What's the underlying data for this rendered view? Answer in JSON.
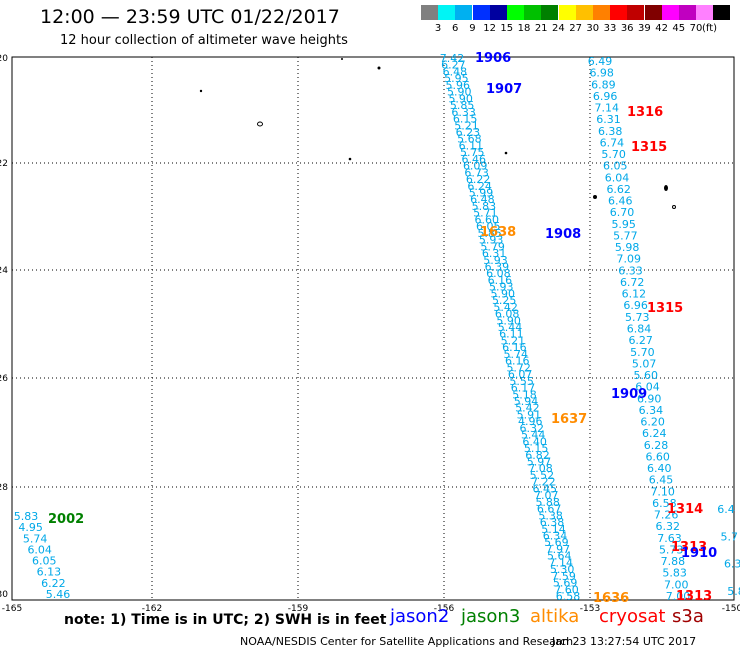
{
  "header": {
    "title": "12:00 — 23:59 UTC 01/22/2017",
    "subtitle": "12 hour collection of altimeter wave heights"
  },
  "legend": {
    "colors": [
      "#808080",
      "#00f5f5",
      "#00b0f0",
      "#0030ff",
      "#0000a0",
      "#00ff00",
      "#00c000",
      "#008000",
      "#ffff00",
      "#ffc000",
      "#ff8000",
      "#ff0000",
      "#c00000",
      "#800000",
      "#ff00ff",
      "#c000c0",
      "#ff80ff",
      "#000000"
    ],
    "labels": [
      "3",
      "6",
      "9",
      "12",
      "15",
      "18",
      "21",
      "24",
      "27",
      "30",
      "33",
      "36",
      "39",
      "42",
      "45",
      "70"
    ],
    "unit": "(ft)"
  },
  "axes": {
    "lat_labels": [
      "-20",
      "-22",
      "-24",
      "-26",
      "-28",
      "-30"
    ],
    "lon_labels": [
      "-165",
      "-162",
      "-159",
      "-156",
      "-153",
      "-150"
    ]
  },
  "passes": [
    {
      "label": "1906",
      "color": "#0000ff"
    },
    {
      "label": "1907",
      "color": "#0000ff"
    },
    {
      "label": "1316",
      "color": "#ff0000"
    },
    {
      "label": "1315",
      "color": "#ff0000"
    },
    {
      "label": "1638",
      "color": "#ff8c00"
    },
    {
      "label": "1908",
      "color": "#0000ff"
    },
    {
      "label": "1315",
      "color": "#ff0000"
    },
    {
      "label": "1909",
      "color": "#0000ff"
    },
    {
      "label": "1637",
      "color": "#ff8c00"
    },
    {
      "label": "2002",
      "color": "#008000"
    },
    {
      "label": "1314",
      "color": "#ff0000"
    },
    {
      "label": "1313",
      "color": "#ff0000"
    },
    {
      "label": "1910",
      "color": "#0000ff"
    },
    {
      "label": "1636",
      "color": "#ff8c00"
    },
    {
      "label": "1313",
      "color": "#ff0000"
    }
  ],
  "tracks": {
    "trackA": [
      "7.42",
      "6.27",
      "6.48",
      "5.95",
      "5.96",
      "5.90",
      "5.90",
      "5.85",
      "6.33",
      "6.15",
      "5.21",
      "6.23",
      "5.68",
      "6.11",
      "5.75",
      "6.46",
      "6.09",
      "6.73",
      "6.22",
      "6.24",
      "5.99",
      "6.48",
      "5.83",
      "5.71",
      "6.60",
      "6.05",
      "5.85",
      "5.93",
      "5.79",
      "6.31",
      "5.93",
      "6.39",
      "6.08",
      "6.16",
      "5.93",
      "5.90",
      "5.25",
      "5.42",
      "6.08",
      "5.90",
      "5.44",
      "6.11",
      "5.21",
      "6.16",
      "5.74",
      "6.16",
      "5.72",
      "6.07",
      "5.55",
      "6.17",
      "5.18",
      "5.94",
      "5.42",
      "5.91",
      "4.96",
      "6.32",
      "5.44",
      "6.40",
      "5.15",
      "6.82",
      "5.97",
      "7.08",
      "5.52",
      "7.22",
      "6.45",
      "7.07",
      "5.88",
      "6.67",
      "5.38",
      "6.38",
      "5.14",
      "6.34",
      "5.69",
      "7.97",
      "5.64",
      "7.14",
      "5.30",
      "7.59",
      "5.69",
      "7.60",
      "6.58"
    ],
    "trackB": [
      "6.49",
      "6.98",
      "6.89",
      "6.96",
      "7.14",
      "6.31",
      "6.38",
      "6.74",
      "5.70",
      "6.05",
      "6.04",
      "6.62",
      "6.46",
      "6.70",
      "5.95",
      "5.77",
      "5.98",
      "7.09",
      "6.33",
      "6.72",
      "6.12",
      "6.96",
      "5.73",
      "6.84",
      "6.27",
      "5.70",
      "5.07",
      "5.60",
      "6.04",
      "6.90",
      "6.34",
      "6.20",
      "6.24",
      "6.28",
      "6.60",
      "6.40",
      "6.45",
      "7.10",
      "6.58",
      "7.26",
      "6.32",
      "7.63",
      "5.73",
      "7.88",
      "5.83",
      "7.00",
      "7.00"
    ],
    "trackC": [
      "5.83",
      "4.95",
      "5.74",
      "6.04",
      "6.05",
      "6.13",
      "6.22",
      "5.46"
    ],
    "trackD": [
      "6.4",
      "5.7",
      "6.3",
      "5.8"
    ]
  },
  "bottom": {
    "note": "note: 1) Time is in UTC; 2) SWH is in feet",
    "sats": [
      {
        "name": "jason2",
        "color": "#0000ff"
      },
      {
        "name": "jason3",
        "color": "#008000"
      },
      {
        "name": "altika",
        "color": "#ff8c00"
      },
      {
        "name": "cryosat",
        "color": "#ff0000"
      },
      {
        "name": "s3a",
        "color": "#a00000"
      }
    ],
    "credit": "NOAA/NESDIS Center for Satellite Applications and Research",
    "timestamp": "Jan 23 13:27:54 UTC 2017"
  }
}
